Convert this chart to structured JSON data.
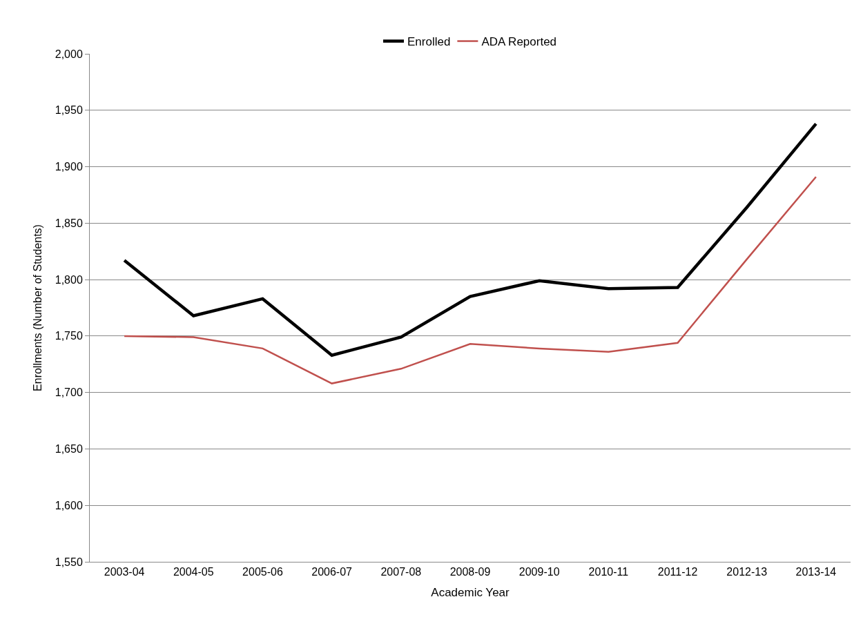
{
  "chart_data": {
    "type": "line",
    "xlabel": "Academic Year",
    "ylabel": "Enrollments (Number of Students)",
    "categories": [
      "2003-04",
      "2004-05",
      "2005-06",
      "2006-07",
      "2007-08",
      "2008-09",
      "2009-10",
      "2010-11",
      "2011-12",
      "2012-13",
      "2013-14"
    ],
    "series": [
      {
        "name": "Enrolled",
        "color": "#000000",
        "values": [
          1817,
          1768,
          1783,
          1733,
          1749,
          1785,
          1799,
          1792,
          1793,
          1864,
          1938
        ]
      },
      {
        "name": "ADA Reported",
        "color": "#c0504d",
        "values": [
          1750,
          1749,
          1739,
          1708,
          1721,
          1743,
          1739,
          1736,
          1744,
          1818,
          1891
        ]
      }
    ],
    "ylim": [
      1550,
      2000
    ],
    "yticks": [
      {
        "value": 1550,
        "label": "1,550"
      },
      {
        "value": 1600,
        "label": "1,600"
      },
      {
        "value": 1650,
        "label": "1,650"
      },
      {
        "value": 1700,
        "label": "1,700"
      },
      {
        "value": 1750,
        "label": "1,750"
      },
      {
        "value": 1800,
        "label": "1,800"
      },
      {
        "value": 1850,
        "label": "1,850"
      },
      {
        "value": 1900,
        "label": "1,900"
      },
      {
        "value": 1950,
        "label": "1,950"
      },
      {
        "value": 2000,
        "label": "2,000"
      }
    ],
    "grid": "y",
    "legend": "top",
    "marker": "none",
    "line_style": "solid"
  }
}
